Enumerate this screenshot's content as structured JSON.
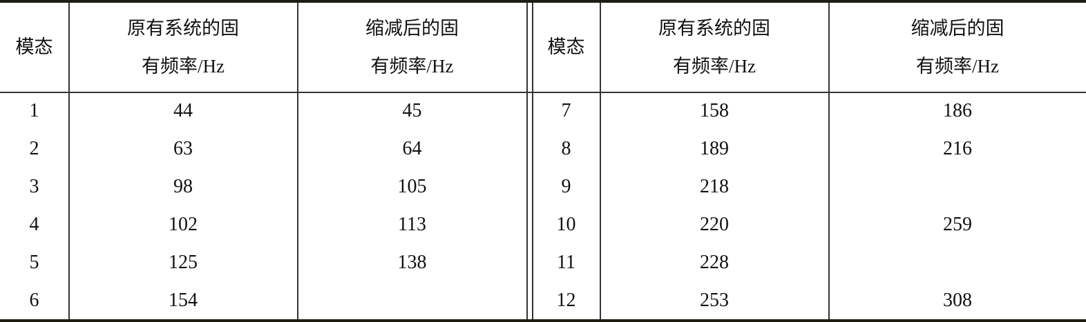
{
  "headers": {
    "mode": "模态",
    "original_line1": "原有系统的固",
    "original_line2": "有频率/Hz",
    "reduced_line1": "缩减后的固",
    "reduced_line2": "有频率/Hz"
  },
  "left_rows": [
    {
      "mode": "1",
      "original": "44",
      "reduced": "45"
    },
    {
      "mode": "2",
      "original": "63",
      "reduced": "64"
    },
    {
      "mode": "3",
      "original": "98",
      "reduced": "105"
    },
    {
      "mode": "4",
      "original": "102",
      "reduced": "113"
    },
    {
      "mode": "5",
      "original": "125",
      "reduced": "138"
    },
    {
      "mode": "6",
      "original": "154",
      "reduced": ""
    }
  ],
  "right_rows": [
    {
      "mode": "7",
      "original": "158",
      "reduced": "186"
    },
    {
      "mode": "8",
      "original": "189",
      "reduced": "216"
    },
    {
      "mode": "9",
      "original": "218",
      "reduced": ""
    },
    {
      "mode": "10",
      "original": "220",
      "reduced": "259"
    },
    {
      "mode": "11",
      "original": "228",
      "reduced": ""
    },
    {
      "mode": "12",
      "original": "253",
      "reduced": "308"
    }
  ]
}
